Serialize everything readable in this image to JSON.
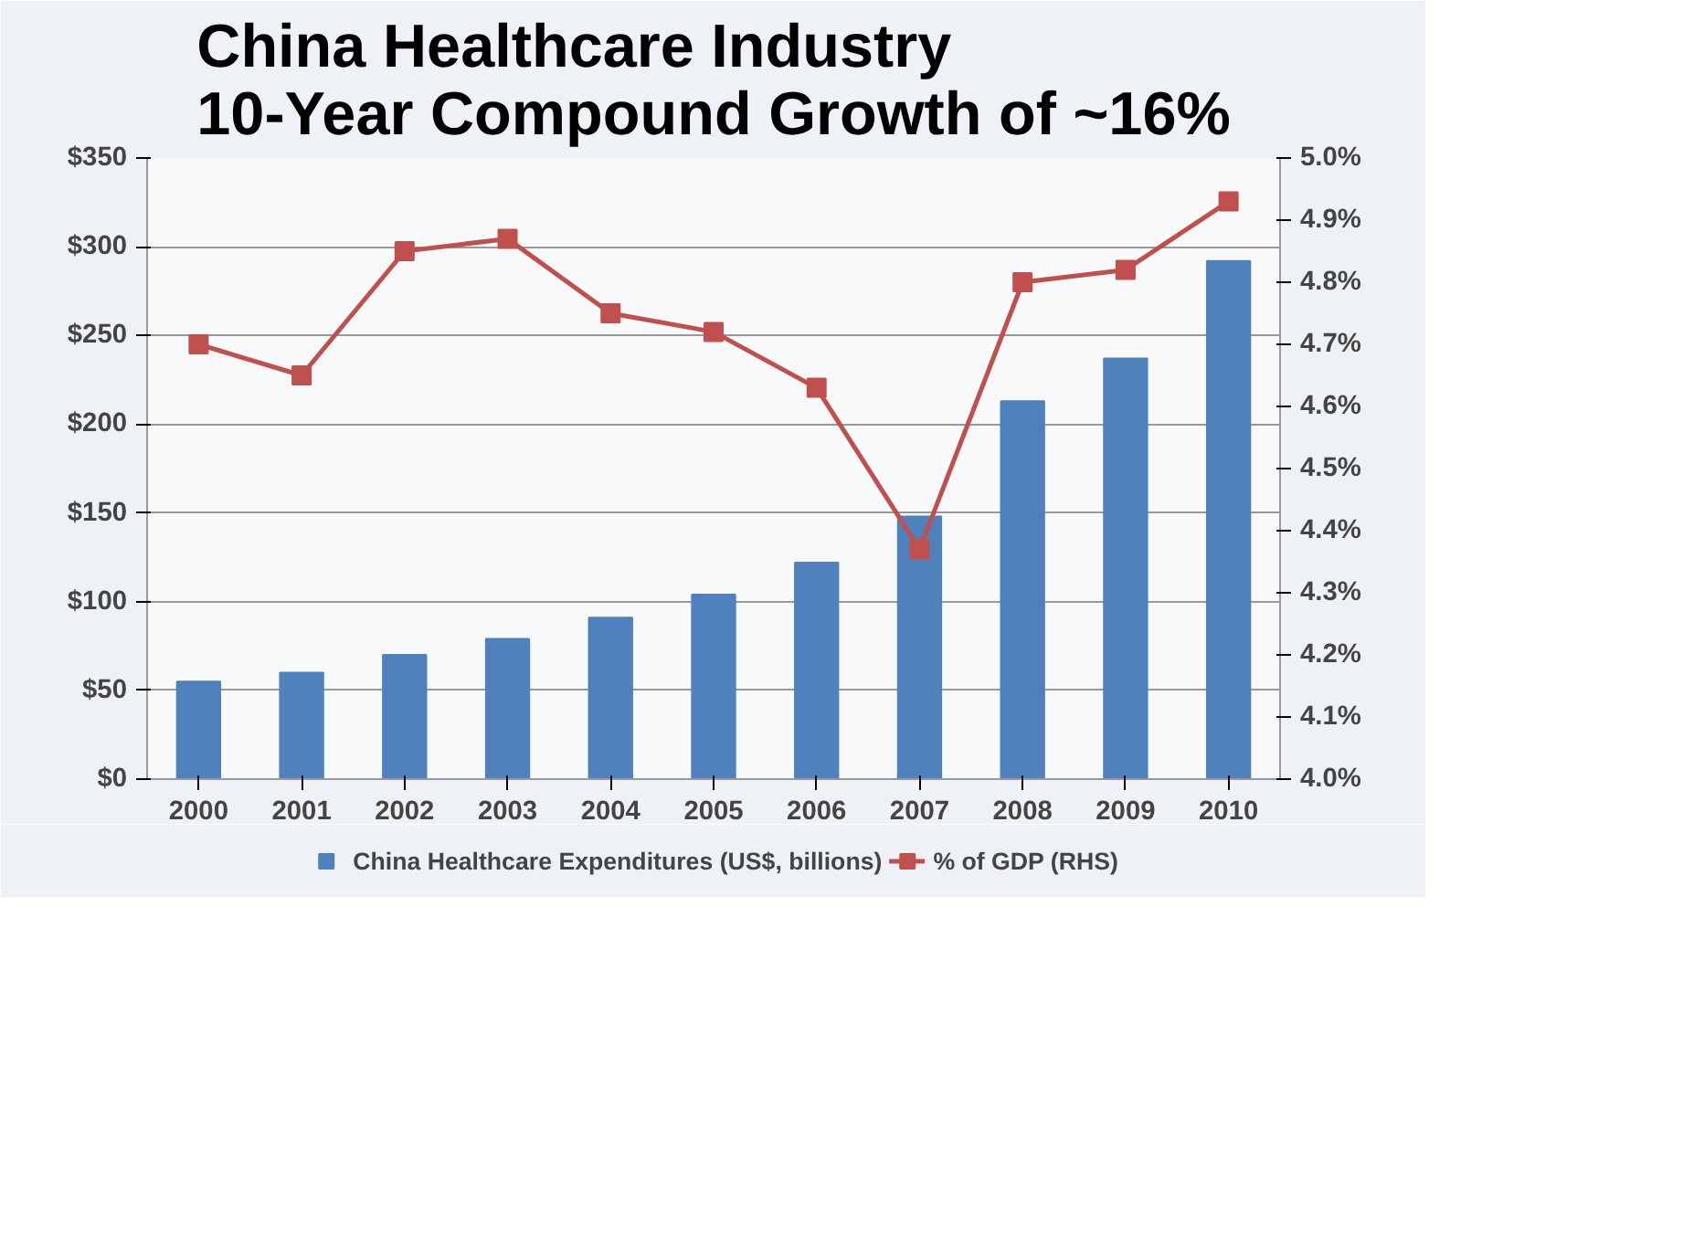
{
  "chart_data": {
    "type": "bar",
    "title": "China Healthcare Industry\n10-Year Compound Growth of ~16%",
    "categories": [
      "2000",
      "2001",
      "2002",
      "2003",
      "2004",
      "2005",
      "2006",
      "2007",
      "2008",
      "2009",
      "2010"
    ],
    "series": [
      {
        "name": "China Healthcare Expenditures (US$, billions)",
        "color": "#4f81bd",
        "values": [
          55,
          60,
          70,
          79,
          91,
          104,
          122,
          148,
          213,
          237,
          292
        ]
      },
      {
        "name": "% of GDP (RHS)",
        "type": "line",
        "axis": "y2",
        "color": "#c0504d",
        "marker": "square",
        "values": [
          4.7,
          4.65,
          4.85,
          4.87,
          4.75,
          4.72,
          4.63,
          4.37,
          4.8,
          4.82,
          4.93
        ]
      }
    ],
    "ylim": [
      0,
      350
    ],
    "yticks": [
      {
        "value": 0,
        "label": "$0"
      },
      {
        "value": 50,
        "label": "$50"
      },
      {
        "value": 100,
        "label": "$100"
      },
      {
        "value": 150,
        "label": "$150"
      },
      {
        "value": 200,
        "label": "$200"
      },
      {
        "value": 250,
        "label": "$250"
      },
      {
        "value": 300,
        "label": "$300"
      },
      {
        "value": 350,
        "label": "$350"
      }
    ],
    "y2lim": [
      4.0,
      5.0
    ],
    "y2ticks": [
      {
        "value": 4.0,
        "label": "4.0%"
      },
      {
        "value": 4.1,
        "label": "4.1%"
      },
      {
        "value": 4.2,
        "label": "4.2%"
      },
      {
        "value": 4.3,
        "label": "4.3%"
      },
      {
        "value": 4.4,
        "label": "4.4%"
      },
      {
        "value": 4.5,
        "label": "4.5%"
      },
      {
        "value": 4.6,
        "label": "4.6%"
      },
      {
        "value": 4.7,
        "label": "4.7%"
      },
      {
        "value": 4.8,
        "label": "4.8%"
      },
      {
        "value": 4.9,
        "label": "4.9%"
      },
      {
        "value": 5.0,
        "label": "5.0%"
      }
    ],
    "grid": "y",
    "legend": "bottom"
  }
}
